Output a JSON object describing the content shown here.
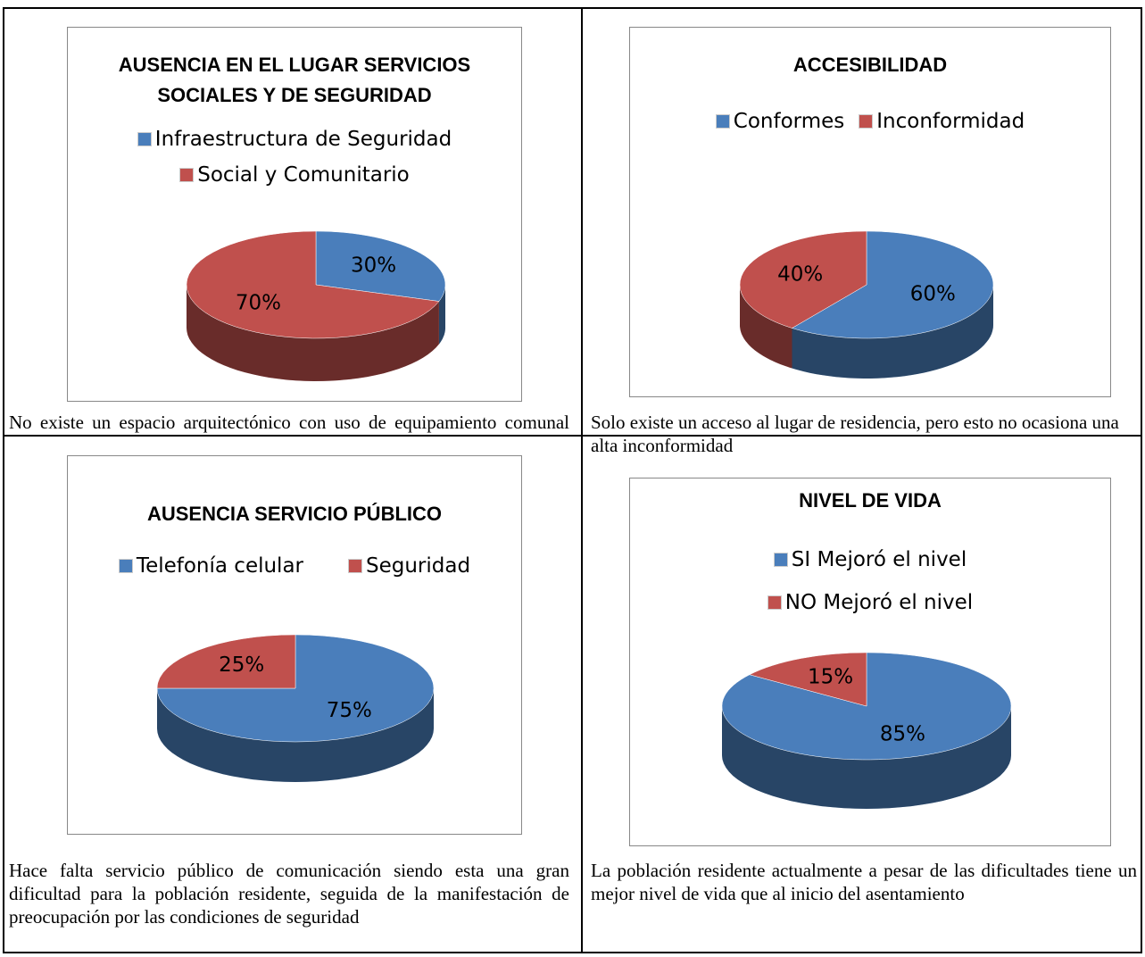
{
  "chart_data": [
    {
      "type": "pie",
      "title": "AUSENCIA EN EL LUGAR SERVICIOS SOCIALES Y DE SEGURIDAD",
      "categories": [
        "Infraestructura de Seguridad",
        "Social y Comunitario"
      ],
      "values": [
        30,
        70
      ],
      "value_labels": [
        "30%",
        "70%"
      ],
      "colors": [
        "#4a7ebb",
        "#c0504d"
      ]
    },
    {
      "type": "pie",
      "title": "ACCESIBILIDAD",
      "categories": [
        "Conformes",
        "Inconformidad"
      ],
      "values": [
        60,
        40
      ],
      "value_labels": [
        "60%",
        "40%"
      ],
      "colors": [
        "#4a7ebb",
        "#c0504d"
      ]
    },
    {
      "type": "pie",
      "title": "AUSENCIA SERVICIO PÚBLICO",
      "categories": [
        "Telefonía celular",
        "Seguridad"
      ],
      "values": [
        75,
        25
      ],
      "value_labels": [
        "75%",
        "25%"
      ],
      "colors": [
        "#4a7ebb",
        "#c0504d"
      ]
    },
    {
      "type": "pie",
      "title": "NIVEL DE VIDA",
      "categories": [
        "SI Mejoró el nivel",
        "NO Mejoró el nivel"
      ],
      "values": [
        85,
        15
      ],
      "value_labels": [
        "85%",
        "15%"
      ],
      "colors": [
        "#4a7ebb",
        "#c0504d"
      ]
    }
  ],
  "captions": [
    "No existe un espacio arquitectónico con uso de equipamiento comunal",
    "Solo existe un acceso al lugar de residencia, pero esto no ocasiona una alta inconformidad",
    "Hace falta servicio público de comunicación siendo esta una gran dificultad para la población residente, seguida de la manifestación de preocupación por las condiciones de seguridad",
    "La población residente actualmente a pesar de las dificultades tiene un mejor nivel de vida que al inicio del asentamiento"
  ]
}
